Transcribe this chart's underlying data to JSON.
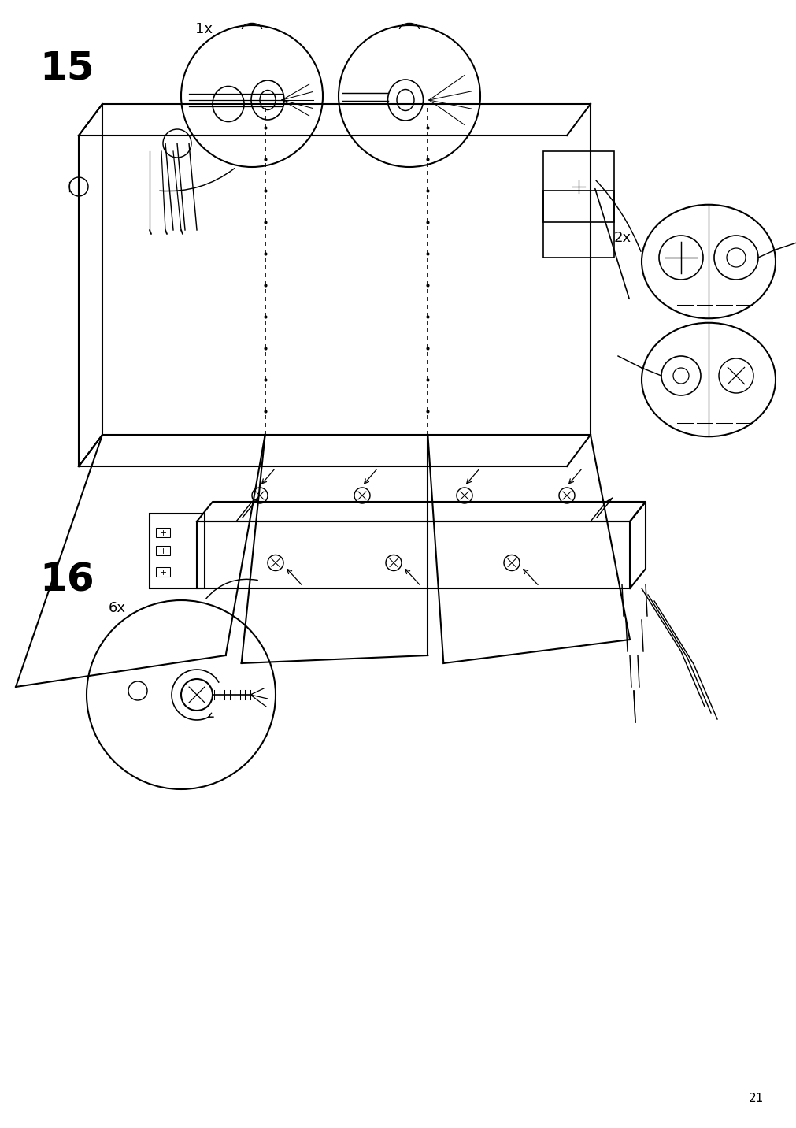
{
  "page_number": "21",
  "step15_label": "15",
  "step16_label": "16",
  "qty1x": "1x",
  "qty2x": "2x",
  "qty6x": "6x",
  "bg_color": "#ffffff",
  "line_color": "#000000",
  "line_width": 1.5,
  "fig_width": 10.12,
  "fig_height": 14.32,
  "dpi": 100
}
